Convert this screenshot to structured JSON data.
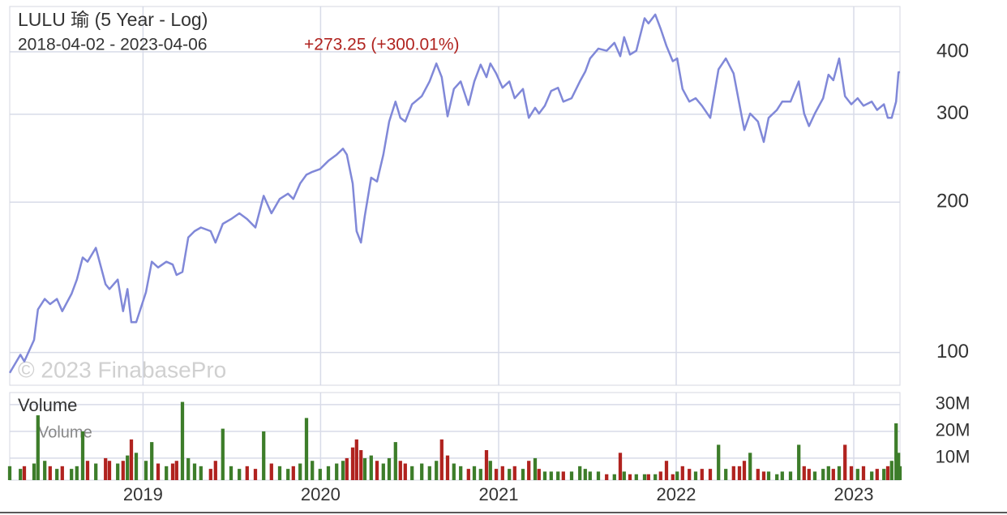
{
  "chart_data": [
    {
      "type": "line",
      "title": "LULU 瑜 (5 Year - Log)",
      "subtitle": "2018-04-02 - 2023-04-06",
      "annotation": "+273.25 (+300.01%)",
      "watermark": "© 2023 FinabasePro",
      "color": "#8088d8",
      "log_scale": true,
      "grid": true,
      "x": [
        "2018-04-02",
        "2018-04-24",
        "2018-05-02",
        "2018-05-22",
        "2018-05-30",
        "2018-06-13",
        "2018-06-24",
        "2018-07-08",
        "2018-07-19",
        "2018-08-07",
        "2018-08-18",
        "2018-08-30",
        "2018-09-09",
        "2018-09-26",
        "2018-10-16",
        "2018-10-24",
        "2018-11-10",
        "2018-11-21",
        "2018-11-30",
        "2018-12-08",
        "2018-12-18",
        "2019-01-07",
        "2019-01-19",
        "2019-02-01",
        "2019-02-18",
        "2019-03-03",
        "2019-03-11",
        "2019-03-23",
        "2019-04-04",
        "2019-04-17",
        "2019-04-30",
        "2019-05-20",
        "2019-05-30",
        "2019-06-14",
        "2019-07-01",
        "2019-07-18",
        "2019-08-03",
        "2019-08-20",
        "2019-09-06",
        "2019-09-22",
        "2019-10-09",
        "2019-10-26",
        "2019-11-06",
        "2019-11-20",
        "2019-12-03",
        "2019-12-15",
        "2019-12-31",
        "2020-01-17",
        "2020-02-03",
        "2020-02-16",
        "2020-02-24",
        "2020-03-07",
        "2020-03-15",
        "2020-03-24",
        "2020-04-01",
        "2020-04-14",
        "2020-04-26",
        "2020-05-09",
        "2020-05-21",
        "2020-06-03",
        "2020-06-13",
        "2020-06-23",
        "2020-07-07",
        "2020-07-27",
        "2020-08-12",
        "2020-08-26",
        "2020-09-06",
        "2020-09-18",
        "2020-10-01",
        "2020-10-15",
        "2020-10-31",
        "2020-11-12",
        "2020-11-25",
        "2020-12-07",
        "2020-12-15",
        "2020-12-27",
        "2021-01-09",
        "2021-01-23",
        "2021-02-03",
        "2021-02-20",
        "2021-03-04",
        "2021-03-17",
        "2021-03-25",
        "2021-04-06",
        "2021-04-19",
        "2021-05-03",
        "2021-05-14",
        "2021-05-31",
        "2021-06-17",
        "2021-06-28",
        "2021-07-08",
        "2021-07-25",
        "2021-08-11",
        "2021-08-27",
        "2021-09-08",
        "2021-09-16",
        "2021-09-28",
        "2021-10-11",
        "2021-10-28",
        "2021-11-05",
        "2021-11-19",
        "2021-11-30",
        "2021-12-12",
        "2021-12-25",
        "2022-01-03",
        "2022-01-14",
        "2022-01-28",
        "2022-02-10",
        "2022-02-23",
        "2022-03-12",
        "2022-03-29",
        "2022-04-13",
        "2022-04-29",
        "2022-05-11",
        "2022-05-21",
        "2022-06-02",
        "2022-06-18",
        "2022-06-30",
        "2022-07-10",
        "2022-07-27",
        "2022-08-07",
        "2022-08-24",
        "2022-09-10",
        "2022-09-21",
        "2022-10-01",
        "2022-10-13",
        "2022-10-30",
        "2022-11-10",
        "2022-11-20",
        "2022-12-02",
        "2022-12-14",
        "2022-12-27",
        "2023-01-09",
        "2023-01-21",
        "2023-02-07",
        "2023-02-18",
        "2023-03-04",
        "2023-03-12",
        "2023-03-20",
        "2023-03-29",
        "2023-04-03",
        "2023-04-06"
      ],
      "values": [
        91.08,
        99,
        96,
        106,
        122,
        128,
        125,
        128,
        121,
        131,
        140,
        155,
        152,
        162,
        137,
        134,
        140,
        121,
        134,
        115,
        115,
        132,
        152,
        148,
        152,
        150,
        143,
        145,
        170,
        175,
        178,
        175,
        166,
        181,
        185,
        190,
        185,
        178,
        206,
        190,
        203,
        208,
        203,
        218,
        227,
        230,
        233,
        242,
        249,
        256,
        249,
        218,
        175,
        166,
        188,
        224,
        220,
        249,
        290,
        318,
        295,
        290,
        314,
        326,
        349,
        379,
        356,
        297,
        337,
        349,
        313,
        349,
        377,
        356,
        379,
        362,
        339,
        349,
        323,
        337,
        295,
        309,
        301,
        312,
        334,
        339,
        318,
        323,
        349,
        365,
        388,
        406,
        402,
        417,
        392,
        428,
        395,
        402,
        467,
        456,
        475,
        445,
        411,
        383,
        388,
        337,
        318,
        323,
        312,
        295,
        369,
        388,
        362,
        314,
        279,
        301,
        290,
        264,
        295,
        306,
        318,
        318,
        349,
        301,
        284,
        301,
        323,
        360,
        351,
        388,
        326,
        314,
        323,
        312,
        318,
        306,
        314,
        295,
        295,
        318,
        364,
        364.33
      ],
      "xlim": [
        "2018-04-02",
        "2023-04-06"
      ],
      "xticks": [
        {
          "value": "2019-01-01",
          "label": "2019"
        },
        {
          "value": "2020-01-01",
          "label": "2020"
        },
        {
          "value": "2021-01-01",
          "label": "2021"
        },
        {
          "value": "2022-01-01",
          "label": "2022"
        },
        {
          "value": "2023-01-01",
          "label": "2023"
        }
      ],
      "ylim": [
        86,
        493
      ],
      "yticks": [
        100,
        200,
        300,
        400
      ]
    },
    {
      "type": "bar",
      "title": "Volume",
      "grid": true,
      "up_color": "#3d7d2a",
      "down_color": "#b0231f",
      "x": [
        "2018-04-02",
        "2018-04-24",
        "2018-05-02",
        "2018-05-22",
        "2018-05-30",
        "2018-06-13",
        "2018-06-24",
        "2018-07-08",
        "2018-07-19",
        "2018-08-07",
        "2018-08-18",
        "2018-08-30",
        "2018-09-09",
        "2018-09-26",
        "2018-10-16",
        "2018-10-24",
        "2018-11-10",
        "2018-11-21",
        "2018-11-30",
        "2018-12-08",
        "2018-12-18",
        "2019-01-07",
        "2019-01-19",
        "2019-02-01",
        "2019-02-18",
        "2019-03-03",
        "2019-03-11",
        "2019-03-23",
        "2019-04-04",
        "2019-04-17",
        "2019-04-30",
        "2019-05-20",
        "2019-05-30",
        "2019-06-14",
        "2019-07-01",
        "2019-07-18",
        "2019-08-03",
        "2019-08-20",
        "2019-09-06",
        "2019-09-22",
        "2019-10-09",
        "2019-10-26",
        "2019-11-06",
        "2019-11-20",
        "2019-12-03",
        "2019-12-15",
        "2019-12-31",
        "2020-01-17",
        "2020-02-03",
        "2020-02-16",
        "2020-02-24",
        "2020-03-07",
        "2020-03-15",
        "2020-03-24",
        "2020-04-01",
        "2020-04-14",
        "2020-04-26",
        "2020-05-09",
        "2020-05-21",
        "2020-06-03",
        "2020-06-13",
        "2020-06-23",
        "2020-07-07",
        "2020-07-27",
        "2020-08-12",
        "2020-08-26",
        "2020-09-06",
        "2020-09-18",
        "2020-10-01",
        "2020-10-15",
        "2020-10-31",
        "2020-11-12",
        "2020-11-25",
        "2020-12-07",
        "2020-12-15",
        "2020-12-27",
        "2021-01-09",
        "2021-01-23",
        "2021-02-03",
        "2021-02-20",
        "2021-03-04",
        "2021-03-17",
        "2021-03-25",
        "2021-04-06",
        "2021-04-19",
        "2021-05-03",
        "2021-05-14",
        "2021-05-31",
        "2021-06-17",
        "2021-06-28",
        "2021-07-08",
        "2021-07-25",
        "2021-08-11",
        "2021-08-27",
        "2021-09-08",
        "2021-09-16",
        "2021-09-28",
        "2021-10-11",
        "2021-10-28",
        "2021-11-05",
        "2021-11-19",
        "2021-11-30",
        "2021-12-12",
        "2021-12-25",
        "2022-01-03",
        "2022-01-14",
        "2022-01-28",
        "2022-02-10",
        "2022-02-23",
        "2022-03-12",
        "2022-03-29",
        "2022-04-13",
        "2022-04-29",
        "2022-05-11",
        "2022-05-21",
        "2022-06-02",
        "2022-06-18",
        "2022-06-30",
        "2022-07-10",
        "2022-07-27",
        "2022-08-07",
        "2022-08-24",
        "2022-09-10",
        "2022-09-21",
        "2022-10-01",
        "2022-10-13",
        "2022-10-30",
        "2022-11-10",
        "2022-11-20",
        "2022-12-02",
        "2022-12-14",
        "2022-12-27",
        "2023-01-09",
        "2023-01-21",
        "2023-02-07",
        "2023-02-18",
        "2023-03-04",
        "2023-03-12",
        "2023-03-20",
        "2023-03-29",
        "2023-04-03",
        "2023-04-06"
      ],
      "series": [
        {
          "name": "Volume",
          "values": [
            7,
            6,
            7,
            8,
            26,
            9,
            7,
            6,
            7,
            6,
            7,
            20,
            9,
            8,
            10,
            9,
            8,
            9,
            11,
            17,
            12,
            9,
            16,
            8,
            7,
            8,
            9,
            31,
            10,
            8,
            7,
            6,
            9,
            21,
            7,
            6,
            7,
            6,
            20,
            8,
            7,
            6,
            7,
            8,
            25,
            9,
            6,
            7,
            8,
            9,
            10,
            14,
            17,
            13,
            10,
            11,
            9,
            8,
            10,
            16,
            9,
            8,
            7,
            8,
            7,
            9,
            17,
            11,
            8,
            7,
            6,
            7,
            6,
            13,
            9,
            6,
            7,
            6,
            7,
            6,
            9,
            10,
            6,
            5,
            5,
            5,
            5,
            5,
            7,
            6,
            5,
            5,
            4,
            4,
            12,
            5,
            4,
            4,
            4,
            4,
            4,
            5,
            9,
            4,
            5,
            7,
            6,
            5,
            6,
            6,
            15,
            6,
            7,
            7,
            9,
            12,
            6,
            5,
            5,
            4,
            5,
            5,
            15,
            7,
            6,
            5,
            6,
            7,
            6,
            7,
            15,
            7,
            6,
            7,
            5,
            6,
            6,
            7,
            9,
            23,
            12,
            7
          ]
        }
      ],
      "xlim": [
        "2018-04-02",
        "2023-04-06"
      ],
      "xticks": [
        {
          "value": "2019-01-01",
          "label": "2019"
        },
        {
          "value": "2020-01-01",
          "label": "2020"
        },
        {
          "value": "2021-01-01",
          "label": "2021"
        },
        {
          "value": "2022-01-01",
          "label": "2022"
        },
        {
          "value": "2023-01-01",
          "label": "2023"
        }
      ],
      "ylim": [
        1.8,
        34.5
      ],
      "yticks": [
        {
          "value": 10,
          "label": "10M"
        },
        {
          "value": 20,
          "label": "20M"
        },
        {
          "value": 30,
          "label": "30M"
        }
      ]
    }
  ]
}
